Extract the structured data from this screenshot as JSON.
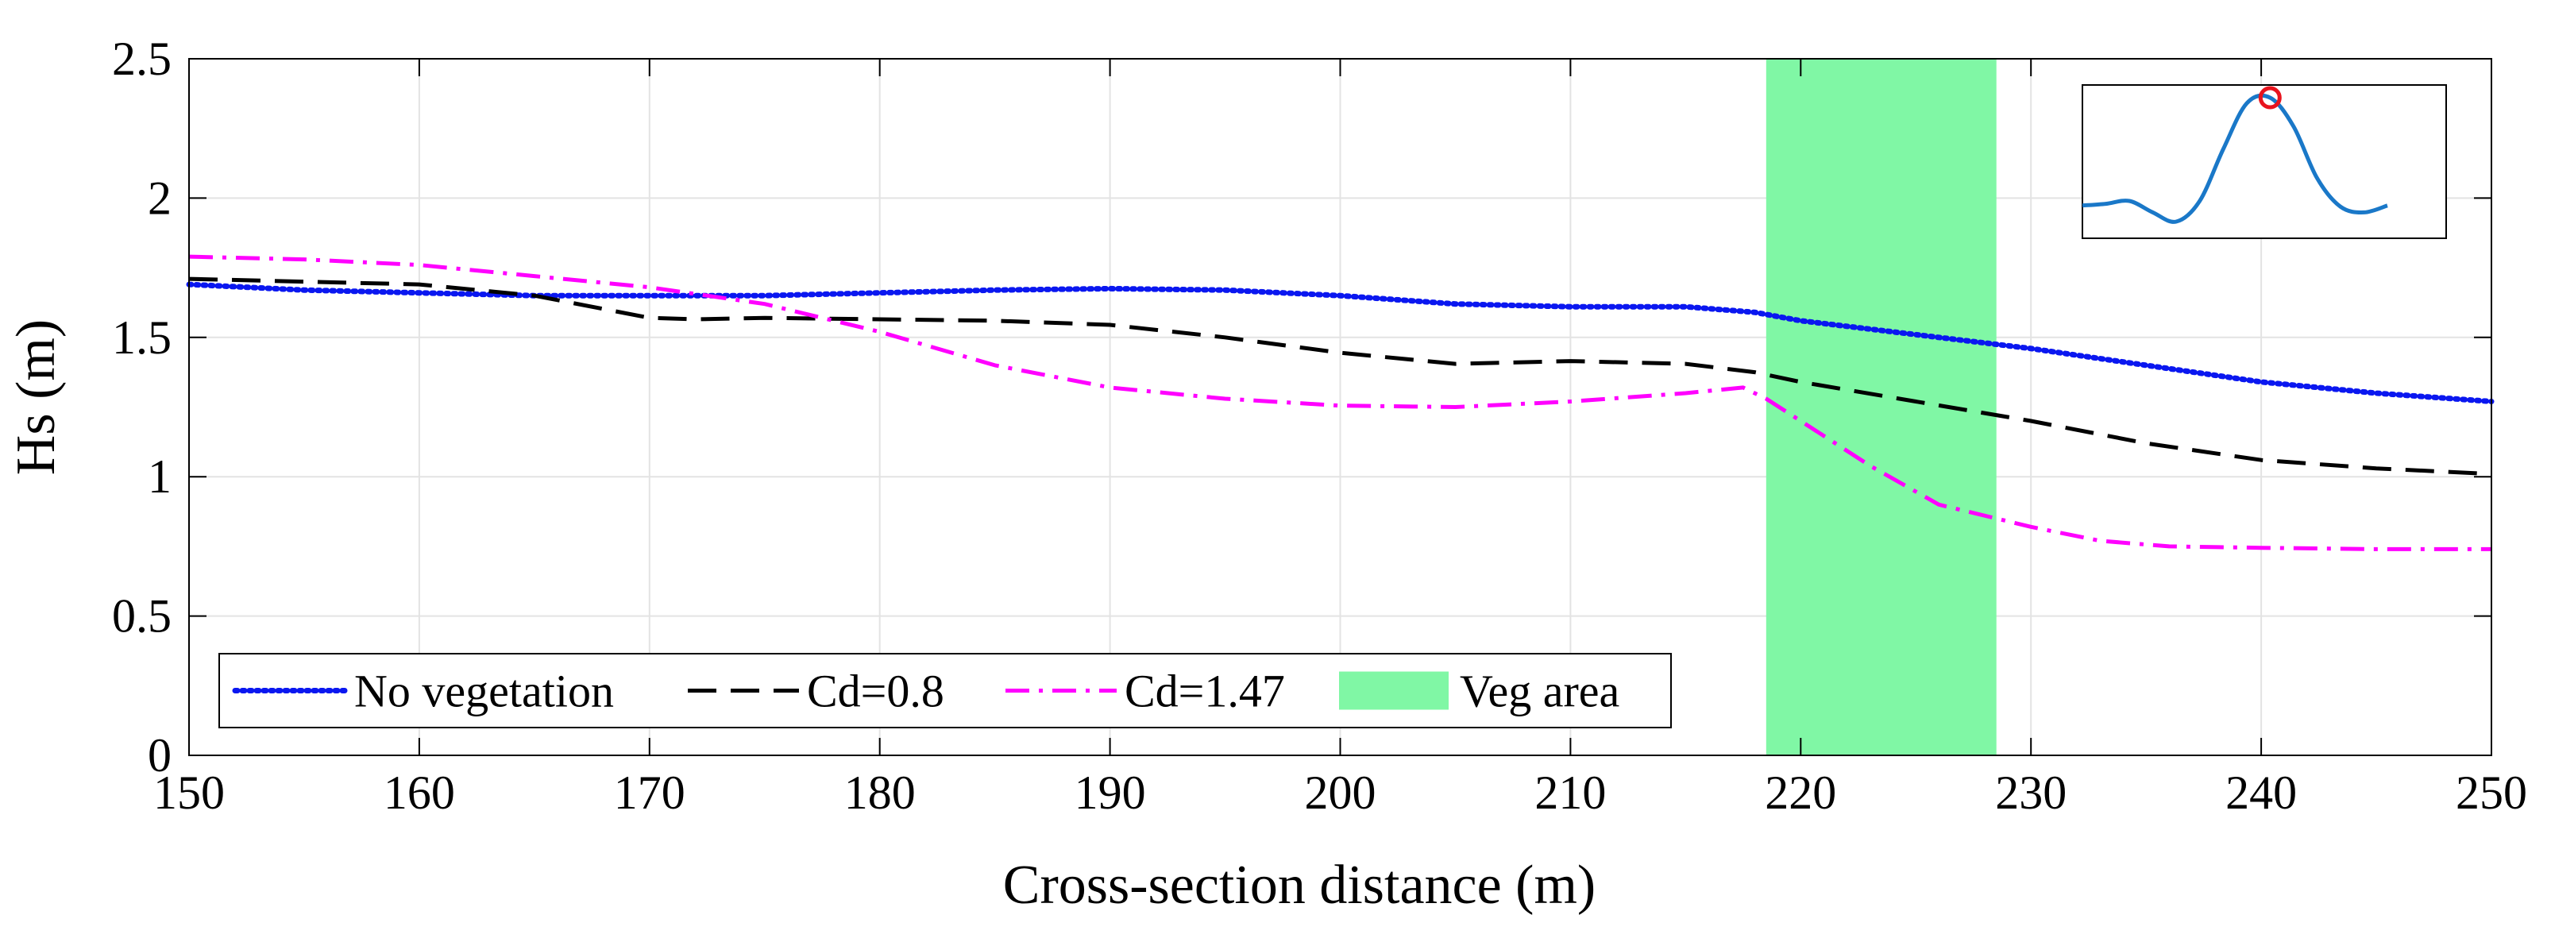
{
  "chart_data": {
    "type": "line",
    "xlabel": "Cross-section distance (m)",
    "ylabel": "Hs (m)",
    "xlim": [
      150,
      250
    ],
    "ylim": [
      0,
      2.5
    ],
    "xticks": [
      150,
      160,
      170,
      180,
      190,
      200,
      210,
      220,
      230,
      240,
      250
    ],
    "yticks": [
      0,
      0.5,
      1,
      1.5,
      2,
      2.5
    ],
    "ytick_labels": [
      "0",
      "0.5",
      "1",
      "1.5",
      "2",
      "2.5"
    ],
    "grid": true,
    "legend_position": "bottom-left",
    "veg_area": {
      "label": "Veg area",
      "x_start": 218.5,
      "x_end": 228.5,
      "color": "#80f7a5"
    },
    "series": [
      {
        "name": "No vegetation",
        "color": "#0a17f0",
        "dash": "dotted",
        "x": [
          150,
          155,
          160,
          165,
          170,
          175,
          180,
          185,
          190,
          195,
          200,
          205,
          210,
          215,
          218,
          220,
          225,
          230,
          235,
          240,
          245,
          250
        ],
        "y": [
          1.69,
          1.67,
          1.66,
          1.65,
          1.65,
          1.65,
          1.66,
          1.67,
          1.675,
          1.67,
          1.65,
          1.62,
          1.61,
          1.61,
          1.59,
          1.56,
          1.51,
          1.46,
          1.4,
          1.34,
          1.3,
          1.27
        ]
      },
      {
        "name": "Cd=0.8",
        "color": "#000000",
        "dash": "dashed",
        "x": [
          150,
          155,
          160,
          165,
          170,
          172,
          175,
          180,
          185,
          190,
          195,
          200,
          205,
          210,
          215,
          218,
          220,
          225,
          230,
          235,
          240,
          245,
          250
        ],
        "y": [
          1.71,
          1.7,
          1.69,
          1.65,
          1.57,
          1.565,
          1.57,
          1.565,
          1.56,
          1.545,
          1.5,
          1.445,
          1.405,
          1.415,
          1.405,
          1.375,
          1.34,
          1.27,
          1.2,
          1.12,
          1.06,
          1.03,
          1.01
        ]
      },
      {
        "name": "Cd=1.47",
        "color": "#ff00ff",
        "dash": "dashdot",
        "x": [
          150,
          155,
          160,
          165,
          170,
          175,
          180,
          185,
          190,
          195,
          200,
          205,
          210,
          215,
          217.5,
          218.5,
          220,
          223,
          226,
          230,
          233,
          236,
          240,
          245,
          250
        ],
        "y": [
          1.79,
          1.78,
          1.76,
          1.72,
          1.68,
          1.62,
          1.52,
          1.4,
          1.32,
          1.28,
          1.255,
          1.25,
          1.27,
          1.3,
          1.32,
          1.28,
          1.2,
          1.04,
          0.9,
          0.82,
          0.77,
          0.75,
          0.745,
          0.74,
          0.74
        ]
      }
    ],
    "inset": {
      "profile": [
        0.06,
        0.075,
        0.1,
        0.0,
        -0.08,
        0.1,
        0.55,
        0.95,
        1.0,
        0.75,
        0.3,
        0.05,
        0.0,
        0.06
      ],
      "marker_index": 8
    }
  }
}
